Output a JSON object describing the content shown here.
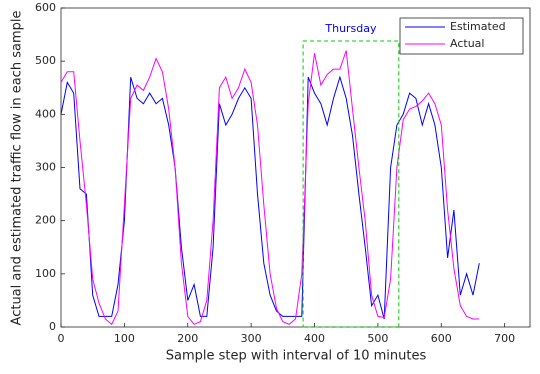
{
  "chart_data": {
    "type": "line",
    "x_label": "Sample step with interval of 10 minutes",
    "y_label": "Actual and estimated traffic flow in each sample",
    "x": [
      0,
      10,
      20,
      30,
      40,
      50,
      60,
      70,
      80,
      90,
      100,
      110,
      120,
      130,
      140,
      150,
      160,
      170,
      180,
      190,
      200,
      210,
      220,
      230,
      240,
      250,
      260,
      270,
      280,
      290,
      300,
      310,
      320,
      330,
      340,
      350,
      360,
      370,
      380,
      390,
      400,
      410,
      420,
      430,
      440,
      450,
      460,
      470,
      480,
      490,
      500,
      510,
      520,
      530,
      540,
      550,
      560,
      570,
      580,
      590,
      600,
      610,
      620,
      630,
      640,
      650,
      660
    ],
    "series": [
      {
        "name": "Estimated",
        "color": "#0000ff",
        "values": [
          400,
          460,
          440,
          260,
          250,
          60,
          20,
          20,
          20,
          80,
          200,
          470,
          430,
          420,
          440,
          420,
          430,
          380,
          300,
          150,
          50,
          80,
          20,
          20,
          150,
          420,
          380,
          400,
          430,
          450,
          430,
          250,
          120,
          60,
          30,
          20,
          20,
          20,
          20,
          470,
          440,
          420,
          380,
          430,
          470,
          430,
          360,
          250,
          150,
          40,
          60,
          15,
          300,
          380,
          400,
          440,
          430,
          380,
          420,
          380,
          300,
          130,
          220,
          60,
          100,
          60,
          120
        ]
      },
      {
        "name": "Actual",
        "color": "#ff00ff",
        "values": [
          460,
          480,
          480,
          350,
          230,
          90,
          45,
          15,
          5,
          30,
          230,
          430,
          455,
          445,
          470,
          505,
          480,
          410,
          300,
          120,
          20,
          5,
          10,
          50,
          200,
          450,
          470,
          430,
          450,
          485,
          460,
          380,
          230,
          100,
          35,
          10,
          5,
          15,
          100,
          420,
          515,
          455,
          475,
          485,
          485,
          520,
          410,
          300,
          200,
          60,
          20,
          18,
          90,
          300,
          390,
          410,
          415,
          425,
          440,
          420,
          380,
          220,
          110,
          40,
          20,
          15,
          15
        ]
      }
    ],
    "xlim": [
      0,
      740
    ],
    "ylim": [
      0,
      600
    ],
    "xticks": [
      0,
      100,
      200,
      300,
      400,
      500,
      600,
      700
    ],
    "yticks": [
      0,
      100,
      200,
      300,
      400,
      500,
      600
    ],
    "legend": "upper right",
    "highlight": {
      "label": "Thursday",
      "color": "#00cc00",
      "x": [
        382,
        533
      ],
      "y": [
        0,
        538
      ]
    }
  }
}
